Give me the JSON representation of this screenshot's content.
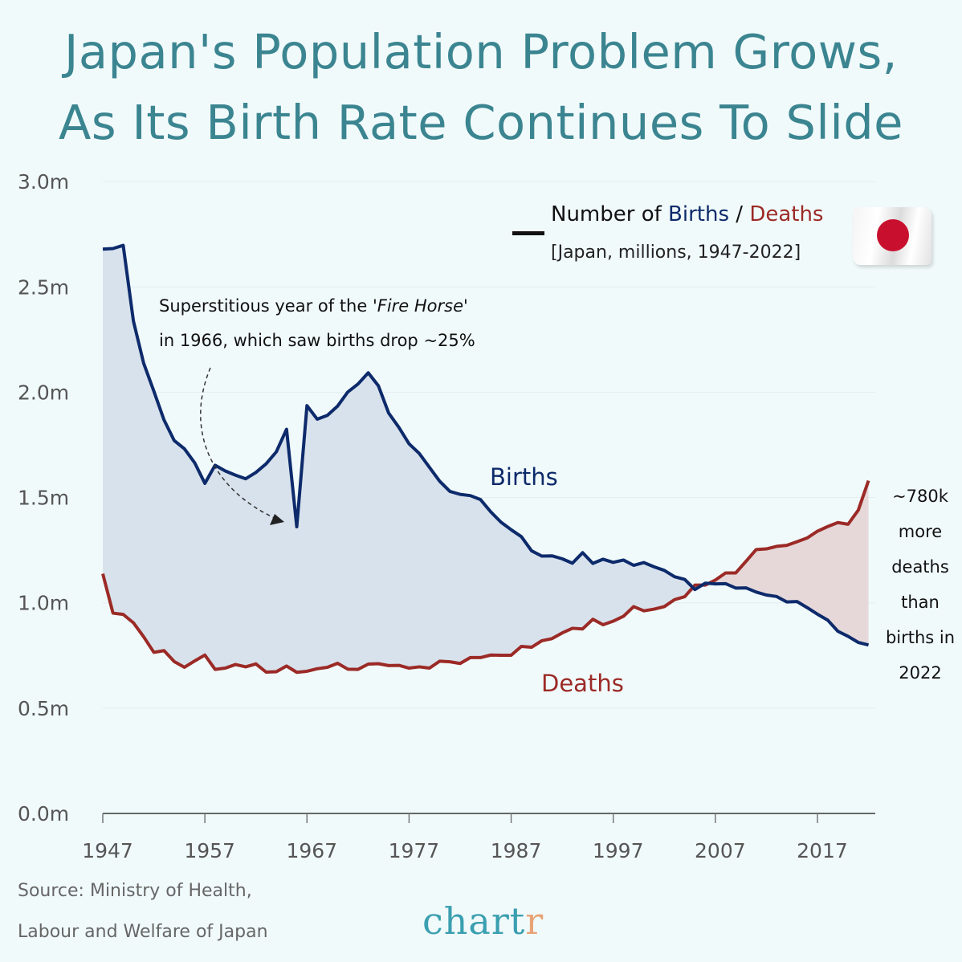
{
  "title": {
    "line1": "Japan's Population Problem Grows,",
    "line2": "As Its Birth Rate Continues To Slide"
  },
  "legend": {
    "prefix": "Number of ",
    "births": "Births",
    "sep": " / ",
    "deaths": "Deaths",
    "subtitle": "[Japan, millions, 1947-2022]",
    "flag_icon": "japan-flag-icon"
  },
  "annotation": {
    "line1_pre": "Superstitious year of the '",
    "line1_em": "Fire Horse",
    "line1_post": "'",
    "line2": "in 1966, which saw births drop ~25%"
  },
  "side_note": [
    "~780k",
    "more",
    "deaths",
    "than",
    "births in",
    "2022"
  ],
  "source": {
    "line1": "Source: Ministry of Health,",
    "line2": "Labour and Welfare of Japan"
  },
  "logo": {
    "main": "chart",
    "accent": "r"
  },
  "colors": {
    "births": "#0d2a6b",
    "deaths": "#9b2a26",
    "births_fill": "#d8e2ec",
    "deaths_fill": "#e6d8d9",
    "title": "#3b8591",
    "background": "#f1fafb"
  },
  "chart_data": {
    "type": "line",
    "title": "Japan's Population Problem Grows, As Its Birth Rate Continues To Slide",
    "ylabel": "",
    "xlabel": "",
    "ylim": [
      0,
      3.0
    ],
    "xlim": [
      1947,
      2022
    ],
    "grid": true,
    "y_ticks": [
      "0.0m",
      "0.5m",
      "1.0m",
      "1.5m",
      "2.0m",
      "2.5m",
      "3.0m"
    ],
    "y_tick_values": [
      0,
      0.5,
      1.0,
      1.5,
      2.0,
      2.5,
      3.0
    ],
    "x_ticks": [
      "1947",
      "1957",
      "1967",
      "1977",
      "1987",
      "1997",
      "2007",
      "2017"
    ],
    "x_start": 1947,
    "series_labels": {
      "births": "Births",
      "deaths": "Deaths"
    },
    "series": [
      {
        "name": "Births",
        "values": [
          2.679,
          2.682,
          2.697,
          2.338,
          2.138,
          2.005,
          1.868,
          1.77,
          1.731,
          1.665,
          1.567,
          1.653,
          1.626,
          1.606,
          1.589,
          1.619,
          1.66,
          1.717,
          1.824,
          1.361,
          1.936,
          1.872,
          1.89,
          1.934,
          2.001,
          2.039,
          2.092,
          2.03,
          1.901,
          1.833,
          1.755,
          1.709,
          1.643,
          1.577,
          1.529,
          1.515,
          1.509,
          1.49,
          1.432,
          1.383,
          1.347,
          1.314,
          1.247,
          1.222,
          1.223,
          1.209,
          1.188,
          1.238,
          1.187,
          1.207,
          1.192,
          1.203,
          1.178,
          1.191,
          1.171,
          1.154,
          1.124,
          1.111,
          1.063,
          1.093,
          1.09,
          1.091,
          1.07,
          1.071,
          1.051,
          1.037,
          1.03,
          1.004,
          1.006,
          0.977,
          0.946,
          0.918,
          0.865,
          0.841,
          0.812,
          0.8
        ]
      },
      {
        "name": "Deaths",
        "values": [
          1.138,
          0.951,
          0.945,
          0.905,
          0.839,
          0.765,
          0.773,
          0.721,
          0.694,
          0.724,
          0.752,
          0.684,
          0.69,
          0.707,
          0.696,
          0.71,
          0.671,
          0.673,
          0.7,
          0.67,
          0.675,
          0.687,
          0.694,
          0.713,
          0.685,
          0.684,
          0.709,
          0.711,
          0.702,
          0.703,
          0.69,
          0.696,
          0.69,
          0.723,
          0.72,
          0.712,
          0.74,
          0.74,
          0.752,
          0.751,
          0.751,
          0.793,
          0.789,
          0.82,
          0.83,
          0.857,
          0.879,
          0.876,
          0.922,
          0.896,
          0.913,
          0.936,
          0.982,
          0.962,
          0.97,
          0.982,
          1.015,
          1.029,
          1.084,
          1.084,
          1.108,
          1.142,
          1.142,
          1.197,
          1.253,
          1.256,
          1.268,
          1.273,
          1.29,
          1.308,
          1.34,
          1.362,
          1.381,
          1.373,
          1.44,
          1.58
        ]
      }
    ]
  }
}
